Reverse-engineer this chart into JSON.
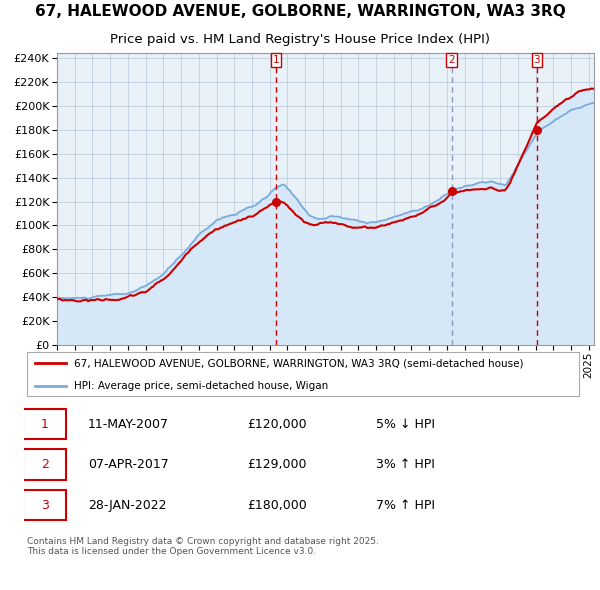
{
  "title1": "67, HALEWOOD AVENUE, GOLBORNE, WARRINGTON, WA3 3RQ",
  "title2": "Price paid vs. HM Land Registry's House Price Index (HPI)",
  "legend_label_red": "67, HALEWOOD AVENUE, GOLBORNE, WARRINGTON, WA3 3RQ (semi-detached house)",
  "legend_label_blue": "HPI: Average price, semi-detached house, Wigan",
  "footer": "Contains HM Land Registry data © Crown copyright and database right 2025.\nThis data is licensed under the Open Government Licence v3.0.",
  "sales": [
    {
      "num": 1,
      "date": "11-MAY-2007",
      "year": 2007.36,
      "price": 120000,
      "pct": "5%",
      "dir": "↓"
    },
    {
      "num": 2,
      "date": "07-APR-2017",
      "year": 2017.27,
      "price": 129000,
      "pct": "3%",
      "dir": "↑"
    },
    {
      "num": 3,
      "date": "28-JAN-2022",
      "year": 2022.08,
      "price": 180000,
      "pct": "7%",
      "dir": "↑"
    }
  ],
  "red_color": "#cc0000",
  "blue_color": "#7aabdb",
  "blue_fill": "#d6e8f7",
  "background_chart": "#e8f0f8",
  "ylim": [
    0,
    244000
  ],
  "yticks": [
    0,
    20000,
    40000,
    60000,
    80000,
    100000,
    120000,
    140000,
    160000,
    180000,
    200000,
    220000,
    240000
  ],
  "title_fontsize": 11,
  "subtitle_fontsize": 9.5
}
